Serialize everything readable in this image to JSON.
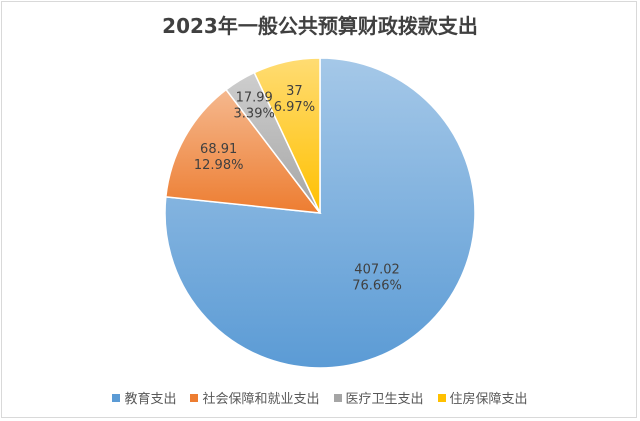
{
  "chart_data": {
    "type": "pie",
    "title": "2023年一般公共预算财政拨款支出",
    "categories": [
      "教育支出",
      "社会保障和就业支出",
      "医疗卫生支出",
      "住房保障支出"
    ],
    "values": [
      407.02,
      68.91,
      17.99,
      37
    ],
    "percent_labels": [
      "76.66%",
      "12.98%",
      "3.39%",
      "6.97%"
    ],
    "value_labels": [
      "407.02",
      "68.91",
      "17.99",
      "37"
    ],
    "colors": [
      "#5b9bd5",
      "#ed7d31",
      "#a5a5a5",
      "#ffc000"
    ],
    "legend_position": "bottom"
  }
}
